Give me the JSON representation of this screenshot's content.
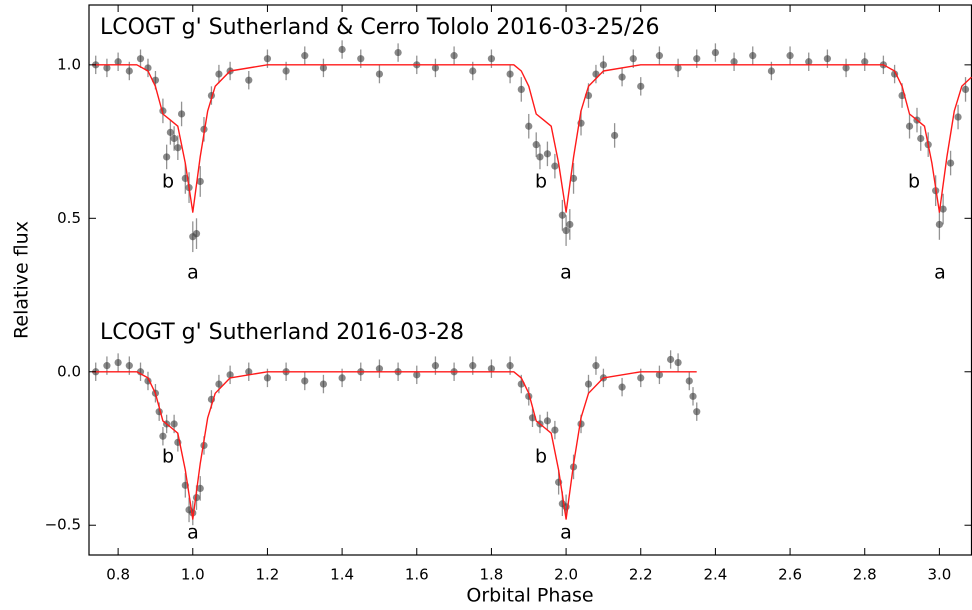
{
  "chart_data": {
    "type": "scatter",
    "xlabel": "Orbital Phase",
    "ylabel": "Relative flux",
    "xlim": [
      0.722,
      3.086
    ],
    "ylim": [
      -0.597,
      1.195
    ],
    "xticks": [
      0.8,
      {
        "value": 1.0,
        "label": "1.0"
      },
      1.2,
      1.4,
      1.6,
      1.8,
      {
        "value": 2.0,
        "label": "2.0"
      },
      2.2,
      2.4,
      2.6,
      2.8,
      {
        "value": 3.0,
        "label": "3.0"
      }
    ],
    "yticks": [
      {
        "value": -0.5,
        "label": "−0.5"
      },
      {
        "value": 0.0,
        "label": "0.0"
      },
      0.5,
      {
        "value": 1.0,
        "label": "1.0"
      }
    ],
    "annotations": [
      "LCOGT g' Sutherland & Cerro Tololo 2016-03-25/26",
      "LCOGT g' Sutherland 2016-03-28",
      "b",
      "a",
      "b",
      "a",
      "b",
      "a",
      "b",
      "a",
      "b",
      "a"
    ],
    "series": [
      {
        "style": "points",
        "color": "#3a3a3a",
        "x": [
          0.74,
          0.77,
          0.8,
          0.83,
          0.86,
          0.88,
          0.9,
          0.92,
          0.93,
          0.94,
          0.95,
          0.96,
          0.97,
          0.98,
          0.99,
          1.0,
          1.01,
          1.02,
          1.03,
          1.05,
          1.07,
          1.1,
          1.15,
          1.2,
          1.25,
          1.3,
          1.35,
          1.4,
          1.45,
          1.5,
          1.55,
          1.6,
          1.65,
          1.7,
          1.75,
          1.8,
          1.85,
          1.88,
          1.9,
          1.92,
          1.93,
          1.95,
          1.97,
          1.99,
          2.0,
          2.01,
          2.02,
          2.04,
          2.06,
          2.08,
          2.1,
          2.13,
          2.15,
          2.18,
          2.2,
          2.25,
          2.3,
          2.35,
          2.4,
          2.45,
          2.5,
          2.55,
          2.6,
          2.65,
          2.7,
          2.75,
          2.8,
          2.85,
          2.88,
          2.9,
          2.92,
          2.94,
          2.95,
          2.97,
          2.99,
          3.0,
          3.01,
          3.03,
          3.05,
          3.07
        ],
        "values": [
          1.0,
          0.99,
          1.01,
          0.98,
          1.02,
          0.99,
          0.95,
          0.85,
          0.7,
          0.78,
          0.76,
          0.73,
          0.84,
          0.63,
          0.6,
          0.44,
          0.45,
          0.62,
          0.79,
          0.9,
          0.97,
          0.98,
          0.95,
          1.02,
          0.98,
          1.03,
          0.99,
          1.05,
          1.02,
          0.97,
          1.04,
          1.0,
          0.99,
          1.03,
          0.98,
          1.02,
          0.97,
          0.92,
          0.8,
          0.74,
          0.7,
          0.71,
          0.67,
          0.51,
          0.46,
          0.48,
          0.63,
          0.81,
          0.9,
          0.97,
          1.0,
          0.77,
          0.96,
          1.02,
          0.93,
          1.03,
          0.99,
          1.02,
          1.04,
          1.01,
          1.03,
          0.98,
          1.03,
          1.01,
          1.02,
          0.99,
          1.01,
          1.0,
          0.97,
          0.9,
          0.8,
          0.82,
          0.76,
          0.74,
          0.59,
          0.48,
          0.53,
          0.68,
          0.83,
          0.92
        ],
        "errors": [
          0.03,
          0.03,
          0.03,
          0.03,
          0.03,
          0.03,
          0.03,
          0.04,
          0.04,
          0.04,
          0.04,
          0.04,
          0.04,
          0.05,
          0.05,
          0.05,
          0.05,
          0.05,
          0.04,
          0.03,
          0.03,
          0.03,
          0.03,
          0.03,
          0.03,
          0.03,
          0.03,
          0.03,
          0.03,
          0.03,
          0.03,
          0.03,
          0.03,
          0.03,
          0.03,
          0.03,
          0.03,
          0.04,
          0.04,
          0.04,
          0.04,
          0.04,
          0.04,
          0.05,
          0.05,
          0.05,
          0.05,
          0.04,
          0.04,
          0.03,
          0.03,
          0.04,
          0.03,
          0.03,
          0.03,
          0.03,
          0.03,
          0.03,
          0.03,
          0.03,
          0.03,
          0.03,
          0.03,
          0.03,
          0.03,
          0.03,
          0.03,
          0.03,
          0.03,
          0.04,
          0.04,
          0.04,
          0.04,
          0.04,
          0.05,
          0.05,
          0.05,
          0.04,
          0.04,
          0.04
        ]
      },
      {
        "style": "points",
        "color": "#3a3a3a",
        "x": [
          0.74,
          0.77,
          0.8,
          0.83,
          0.86,
          0.88,
          0.9,
          0.91,
          0.92,
          0.93,
          0.95,
          0.96,
          0.98,
          0.99,
          1.0,
          1.01,
          1.02,
          1.03,
          1.05,
          1.07,
          1.1,
          1.15,
          1.2,
          1.25,
          1.3,
          1.35,
          1.4,
          1.45,
          1.5,
          1.55,
          1.6,
          1.65,
          1.7,
          1.75,
          1.8,
          1.85,
          1.88,
          1.9,
          1.91,
          1.93,
          1.95,
          1.97,
          1.98,
          1.99,
          2.0,
          2.02,
          2.04,
          2.06,
          2.08,
          2.1,
          2.15,
          2.2,
          2.25,
          2.28,
          2.3,
          2.33,
          2.34,
          2.35
        ],
        "values": [
          0.0,
          0.02,
          0.03,
          0.02,
          0.0,
          -0.03,
          -0.07,
          -0.13,
          -0.21,
          -0.17,
          -0.17,
          -0.23,
          -0.37,
          -0.45,
          -0.46,
          -0.41,
          -0.38,
          -0.24,
          -0.09,
          -0.04,
          -0.01,
          0.0,
          -0.02,
          0.0,
          -0.03,
          -0.04,
          -0.02,
          0.0,
          0.01,
          0.0,
          -0.01,
          0.02,
          0.0,
          0.02,
          0.01,
          0.02,
          -0.04,
          -0.08,
          -0.15,
          -0.17,
          -0.16,
          -0.19,
          -0.36,
          -0.43,
          -0.44,
          -0.31,
          -0.17,
          -0.04,
          0.02,
          -0.02,
          -0.05,
          -0.02,
          -0.01,
          0.04,
          0.03,
          -0.03,
          -0.08,
          -0.13
        ],
        "errors": [
          0.03,
          0.03,
          0.03,
          0.03,
          0.03,
          0.03,
          0.03,
          0.03,
          0.03,
          0.03,
          0.03,
          0.03,
          0.04,
          0.04,
          0.04,
          0.04,
          0.04,
          0.03,
          0.03,
          0.03,
          0.03,
          0.03,
          0.03,
          0.03,
          0.03,
          0.03,
          0.03,
          0.03,
          0.03,
          0.03,
          0.03,
          0.03,
          0.03,
          0.03,
          0.03,
          0.03,
          0.03,
          0.03,
          0.03,
          0.03,
          0.03,
          0.03,
          0.04,
          0.04,
          0.04,
          0.04,
          0.03,
          0.03,
          0.03,
          0.03,
          0.03,
          0.03,
          0.03,
          0.03,
          0.03,
          0.03,
          0.03,
          0.03
        ]
      },
      {
        "style": "line",
        "color": "#ff1a1a",
        "x": [
          0.73,
          0.85,
          0.88,
          0.9,
          0.92,
          0.94,
          0.96,
          0.98,
          1.0,
          1.02,
          1.04,
          1.06,
          1.1,
          1.2,
          1.8,
          1.86,
          1.88,
          1.9,
          1.92,
          1.94,
          1.96,
          1.98,
          2.0,
          2.02,
          2.04,
          2.06,
          2.1,
          2.2,
          2.85,
          2.88,
          2.9,
          2.92,
          2.94,
          2.96,
          2.98,
          3.0,
          3.02,
          3.04,
          3.06,
          3.086
        ],
        "values": [
          1.0,
          1.0,
          0.98,
          0.93,
          0.84,
          0.82,
          0.8,
          0.68,
          0.52,
          0.7,
          0.85,
          0.93,
          0.98,
          1.0,
          1.0,
          1.0,
          0.98,
          0.93,
          0.84,
          0.82,
          0.8,
          0.68,
          0.52,
          0.7,
          0.85,
          0.93,
          0.98,
          1.0,
          1.0,
          0.98,
          0.93,
          0.84,
          0.82,
          0.8,
          0.68,
          0.52,
          0.7,
          0.85,
          0.93,
          0.96
        ]
      },
      {
        "style": "line",
        "color": "#ff1a1a",
        "x": [
          0.73,
          0.85,
          0.88,
          0.9,
          0.92,
          0.94,
          0.96,
          0.98,
          1.0,
          1.02,
          1.04,
          1.06,
          1.1,
          1.2,
          1.8,
          1.86,
          1.88,
          1.9,
          1.92,
          1.94,
          1.96,
          1.98,
          2.0,
          2.02,
          2.04,
          2.06,
          2.1,
          2.2,
          2.35
        ],
        "values": [
          0,
          0,
          -0.02,
          -0.07,
          -0.16,
          -0.18,
          -0.2,
          -0.32,
          -0.48,
          -0.3,
          -0.15,
          -0.07,
          -0.02,
          0,
          0,
          0,
          -0.02,
          -0.07,
          -0.16,
          -0.18,
          -0.2,
          -0.32,
          -0.48,
          -0.3,
          -0.15,
          -0.07,
          -0.02,
          0,
          0
        ]
      }
    ]
  }
}
